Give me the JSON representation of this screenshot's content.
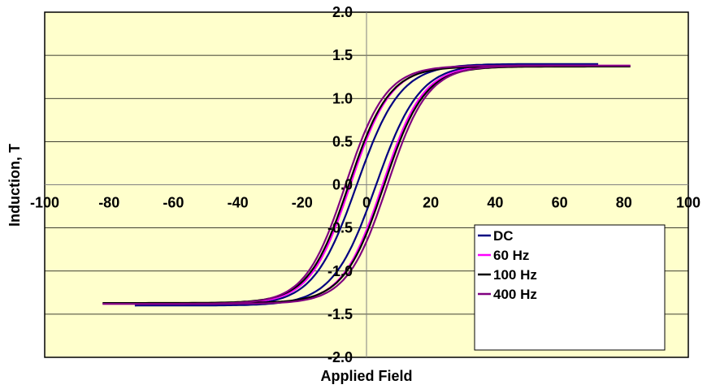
{
  "chart_data": {
    "type": "line",
    "title": "",
    "xlabel": "Applied Field",
    "ylabel": "Induction, T",
    "xlim": [
      -100,
      100
    ],
    "ylim": [
      -2.0,
      2.0
    ],
    "x_ticks": [
      "-100",
      "-80",
      "-60",
      "-40",
      "-20",
      "0",
      "20",
      "40",
      "60",
      "80",
      "100"
    ],
    "y_ticks": [
      "-2.0",
      "-1.5",
      "-1.0",
      "-0.5",
      "0.0",
      "0.5",
      "1.0",
      "1.5",
      "2.0"
    ],
    "grid": "horizontal",
    "legend_position": "bottom-right",
    "plot_background": "#ffffcc",
    "series": [
      {
        "name": "DC",
        "color": "#000080",
        "hmax": 72,
        "bmax": 1.4,
        "hc": 3.0,
        "a": 13.5
      },
      {
        "name": "60 Hz",
        "color": "#ff00ff",
        "hmax": 82,
        "bmax": 1.38,
        "hc": 5.0,
        "a": 12.5
      },
      {
        "name": "100 Hz",
        "color": "#000000",
        "hmax": 82,
        "bmax": 1.37,
        "hc": 5.5,
        "a": 12.5
      },
      {
        "name": "400 Hz",
        "color": "#800080",
        "hmax": 82,
        "bmax": 1.38,
        "hc": 6.5,
        "a": 12.5
      }
    ]
  }
}
